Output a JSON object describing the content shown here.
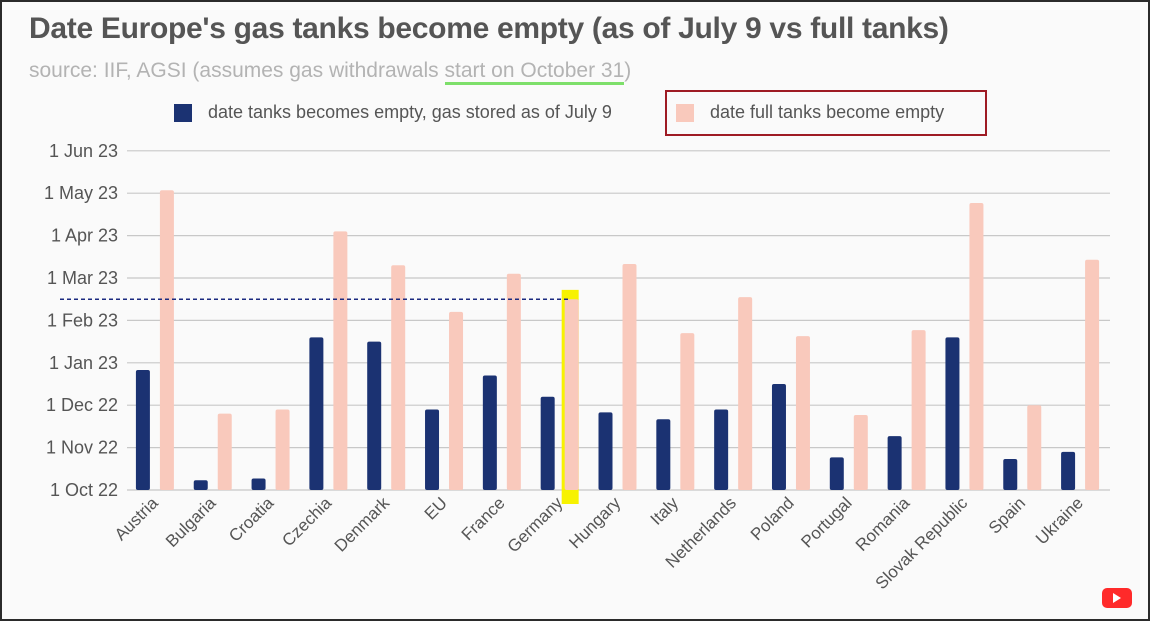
{
  "title": "Date Europe's gas tanks become empty (as of July 9 vs full tanks)",
  "subtitle_prefix": "source: IIF, AGSI (assumes gas withdrawals ",
  "subtitle_highlight": "start on October 31",
  "subtitle_suffix": ")",
  "legend": {
    "current": "date tanks becomes empty, gas stored as of July 9",
    "full": "date full tanks become empty"
  },
  "colors": {
    "current": "#1b3272",
    "full": "#f9c9bc",
    "grid": "#c8c8c8",
    "highlight": "#f7f200",
    "reference_line": "#1b2a80"
  },
  "icons": [
    "youtube-icon"
  ],
  "chart_data": {
    "type": "bar",
    "title": "Date Europe's gas tanks become empty (as of July 9 vs full tanks)",
    "xlabel": "",
    "ylabel": "",
    "y_unit": "months after 1 Oct 22",
    "y_ticks": [
      "1 Oct 22",
      "1 Nov 22",
      "1 Dec 22",
      "1 Jan 23",
      "1 Feb 23",
      "1 Mar 23",
      "1 Apr 23",
      "1 May 23",
      "1 Jun 23"
    ],
    "ylim": [
      0,
      8
    ],
    "categories": [
      "Austria",
      "Bulgaria",
      "Croatia",
      "Czechia",
      "Denmark",
      "EU",
      "France",
      "Germany",
      "Hungary",
      "Italy",
      "Netherlands",
      "Poland",
      "Portugal",
      "Romania",
      "Slovak Republic",
      "Spain",
      "Ukraine"
    ],
    "series": [
      {
        "name": "date tanks becomes empty, gas stored as of July 9",
        "values": [
          2.83,
          0.23,
          0.27,
          3.6,
          3.5,
          1.9,
          2.7,
          2.2,
          1.83,
          1.67,
          1.9,
          2.5,
          0.77,
          1.27,
          3.6,
          0.73,
          0.9
        ]
      },
      {
        "name": "date full tanks become empty",
        "values": [
          7.07,
          1.8,
          1.9,
          6.1,
          5.3,
          4.2,
          5.1,
          4.5,
          5.33,
          3.7,
          4.55,
          3.63,
          1.77,
          3.77,
          6.77,
          2.0,
          5.43
        ]
      }
    ],
    "annotations": {
      "highlighted_category": "Germany",
      "reference_line_value": 4.5
    }
  }
}
